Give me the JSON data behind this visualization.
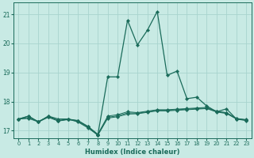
{
  "title": "",
  "xlabel": "Humidex (Indice chaleur)",
  "xlim": [
    -0.5,
    23.5
  ],
  "ylim": [
    16.75,
    21.4
  ],
  "yticks": [
    17,
    18,
    19,
    20,
    21
  ],
  "xticks": [
    0,
    1,
    2,
    3,
    4,
    5,
    6,
    7,
    8,
    9,
    10,
    11,
    12,
    13,
    14,
    15,
    16,
    17,
    18,
    19,
    20,
    21,
    22,
    23
  ],
  "background_color": "#c8eae4",
  "grid_color": "#a8d4ce",
  "line_color": "#1a6b5a",
  "series_main": [
    17.4,
    17.5,
    17.3,
    17.5,
    17.4,
    17.4,
    17.3,
    17.1,
    16.85,
    18.85,
    18.85,
    20.8,
    19.95,
    20.45,
    21.1,
    18.9,
    19.05,
    18.1,
    18.15,
    17.85,
    17.65,
    17.75,
    17.4,
    17.35
  ],
  "series_flat1": [
    17.4,
    17.5,
    17.3,
    17.5,
    17.35,
    17.4,
    17.35,
    17.15,
    16.88,
    17.5,
    17.55,
    17.65,
    17.62,
    17.67,
    17.72,
    17.72,
    17.74,
    17.76,
    17.78,
    17.8,
    17.67,
    17.62,
    17.42,
    17.38
  ],
  "series_flat2": [
    17.4,
    17.45,
    17.32,
    17.48,
    17.34,
    17.39,
    17.34,
    17.14,
    16.86,
    17.46,
    17.51,
    17.61,
    17.6,
    17.65,
    17.7,
    17.7,
    17.72,
    17.74,
    17.76,
    17.78,
    17.66,
    17.61,
    17.41,
    17.37
  ],
  "series_flat3": [
    17.4,
    17.42,
    17.3,
    17.46,
    17.33,
    17.38,
    17.33,
    17.13,
    16.84,
    17.43,
    17.48,
    17.57,
    17.58,
    17.63,
    17.68,
    17.68,
    17.7,
    17.72,
    17.74,
    17.76,
    17.64,
    17.59,
    17.4,
    17.36
  ]
}
